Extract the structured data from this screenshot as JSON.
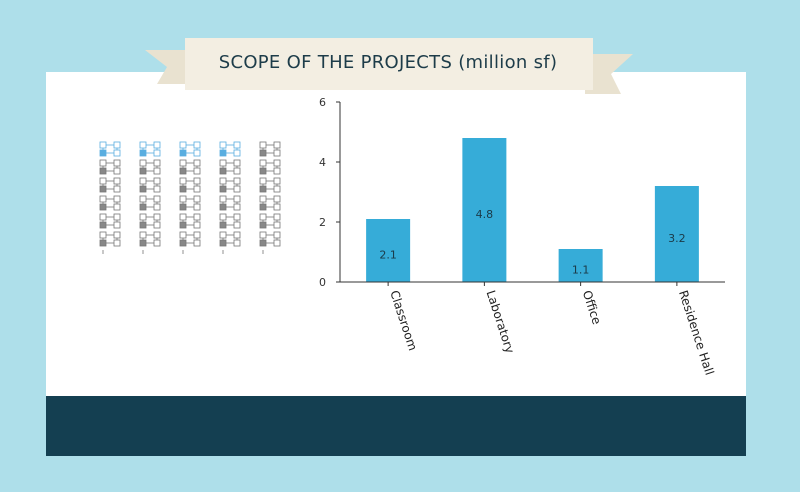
{
  "header": {
    "title": "SCOPE OF THE PROJECTS (million sf)"
  },
  "colors": {
    "background": "#aedfea",
    "ribbon": "#f3eee2",
    "bar": "#36acd8",
    "footer": "#143f51",
    "icon_highlight": "#5aaee0",
    "icon_outline": "#777777"
  },
  "icon_grid": {
    "icon": "building-floorplan-icon",
    "columns": 5,
    "highlighted_columns": 4
  },
  "chart_data": {
    "type": "bar",
    "title": "SCOPE OF THE PROJECTS (million sf)",
    "categories": [
      "Classroom",
      "Laboratory",
      "Office",
      "Residence Hall"
    ],
    "values": [
      2.1,
      4.8,
      1.1,
      3.2
    ],
    "value_labels": [
      "2.1",
      "4.8",
      "1.1",
      "3.2"
    ],
    "ylim": [
      0,
      6
    ],
    "yticks": [
      0,
      2,
      4,
      6
    ],
    "ytick_labels": [
      "0",
      "2",
      "4",
      "6"
    ],
    "xlabel": "",
    "ylabel": "",
    "grid": false,
    "legend": "none"
  }
}
